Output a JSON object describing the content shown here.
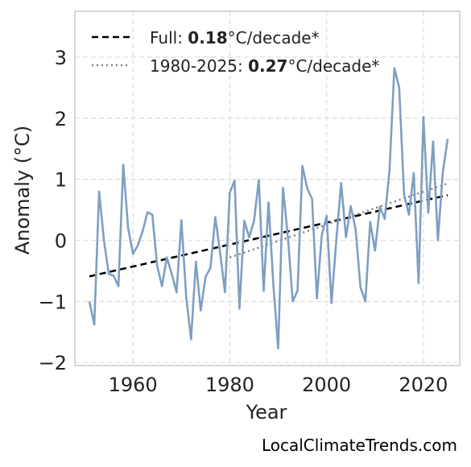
{
  "chart_data": {
    "type": "line",
    "xlabel": "Year",
    "ylabel": "Anomaly (°C)",
    "xlim": [
      1948,
      2027.5
    ],
    "ylim": [
      -2.05,
      3.75
    ],
    "xticks": [
      1960,
      1980,
      2000,
      2020
    ],
    "yticks": [
      -2,
      -1,
      0,
      1,
      2,
      3
    ],
    "x_tick_labels": [
      "1960",
      "1980",
      "2000",
      "2020"
    ],
    "y_tick_labels": [
      "−2",
      "−1",
      "0",
      "1",
      "2",
      "3"
    ],
    "grid": true,
    "legend_position": "top-left",
    "series": [
      {
        "color": "#7e9fc2",
        "x": [
          1951,
          1952,
          1953,
          1954,
          1955,
          1956,
          1957,
          1958,
          1959,
          1960,
          1961,
          1962,
          1963,
          1964,
          1965,
          1966,
          1967,
          1968,
          1969,
          1970,
          1971,
          1972,
          1973,
          1974,
          1975,
          1976,
          1977,
          1978,
          1979,
          1980,
          1981,
          1982,
          1983,
          1984,
          1985,
          1986,
          1987,
          1988,
          1989,
          1990,
          1991,
          1992,
          1993,
          1994,
          1995,
          1996,
          1997,
          1998,
          1999,
          2000,
          2001,
          2002,
          2003,
          2004,
          2005,
          2006,
          2007,
          2008,
          2009,
          2010,
          2011,
          2012,
          2013,
          2014,
          2015,
          2016,
          2017,
          2018,
          2019,
          2020,
          2021,
          2022,
          2023,
          2024,
          2025
        ],
        "y": [
          -1.0,
          -1.38,
          0.8,
          0.0,
          -0.55,
          -0.58,
          -0.75,
          1.24,
          0.2,
          -0.22,
          -0.08,
          0.15,
          0.46,
          0.42,
          -0.42,
          -0.75,
          -0.28,
          -0.55,
          -0.85,
          0.33,
          -0.93,
          -1.62,
          -0.35,
          -1.15,
          -0.6,
          -0.45,
          0.38,
          -0.2,
          -0.85,
          0.78,
          0.98,
          -1.12,
          0.32,
          0.05,
          0.32,
          0.99,
          -0.83,
          0.62,
          -0.72,
          -1.77,
          0.86,
          0.05,
          -1.0,
          -0.82,
          1.22,
          0.85,
          0.68,
          -0.95,
          0.08,
          0.4,
          -1.03,
          0.0,
          0.94,
          0.05,
          0.56,
          0.18,
          -0.77,
          -1.0,
          0.3,
          -0.17,
          0.55,
          0.35,
          1.15,
          2.82,
          2.5,
          0.75,
          0.42,
          1.1,
          -0.7,
          2.02,
          0.45,
          1.62,
          0.0,
          1.12,
          1.66
        ]
      }
    ],
    "trend_lines": [
      {
        "style": "dashed",
        "color": "#000000",
        "x": [
          1951,
          2025
        ],
        "y": [
          -0.59,
          0.74
        ],
        "legend_label": "Full: ",
        "legend_value": "0.18",
        "legend_unit": "°C/decade*"
      },
      {
        "style": "dotted",
        "color": "#808080",
        "x": [
          1980,
          2025
        ],
        "y": [
          -0.28,
          0.93
        ],
        "legend_label": "1980-2025: ",
        "legend_value": "0.27",
        "legend_unit": "°C/decade*"
      }
    ]
  },
  "source_text": "LocalClimateTrends.com"
}
